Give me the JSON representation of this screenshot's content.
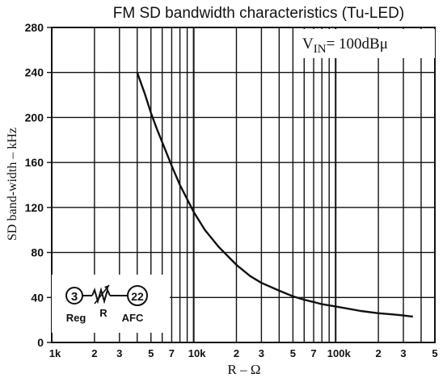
{
  "chart_data": {
    "type": "line",
    "title": "FM SD bandwidth characteristics (Tu-LED)",
    "xlabel": "R – Ω",
    "ylabel": "SD band-width – kHz",
    "annotation_main": "V",
    "annotation_sub": "IN",
    "annotation_rest": "= 100dBμ",
    "x_scale": "log",
    "xlim": [
      1000,
      500000
    ],
    "ylim": [
      0,
      280
    ],
    "grid": true,
    "x_ticks": [
      {
        "value": 1000,
        "label": "1k"
      },
      {
        "value": 2000,
        "label": "2"
      },
      {
        "value": 3000,
        "label": "3"
      },
      {
        "value": 5000,
        "label": "5"
      },
      {
        "value": 7000,
        "label": "7"
      },
      {
        "value": 10000,
        "label": "10k"
      },
      {
        "value": 20000,
        "label": "2"
      },
      {
        "value": 30000,
        "label": "3"
      },
      {
        "value": 50000,
        "label": "5"
      },
      {
        "value": 70000,
        "label": "7"
      },
      {
        "value": 100000,
        "label": "100k"
      },
      {
        "value": 200000,
        "label": "2"
      },
      {
        "value": 300000,
        "label": "3"
      },
      {
        "value": 500000,
        "label": "5"
      }
    ],
    "x_gridlines": [
      2000,
      3000,
      4000,
      5000,
      6000,
      7000,
      8000,
      9000,
      10000,
      20000,
      30000,
      40000,
      50000,
      60000,
      70000,
      80000,
      90000,
      100000,
      200000,
      300000,
      400000
    ],
    "y_ticks": [
      0,
      40,
      80,
      120,
      160,
      200,
      240,
      280
    ],
    "series": [
      {
        "x": [
          4000,
          4500,
          5000,
          5500,
          6000,
          7000,
          8000,
          10000,
          12000,
          15000,
          20000,
          25000,
          30000,
          40000,
          50000,
          60000,
          70000,
          80000,
          100000,
          150000,
          200000,
          250000,
          300000,
          350000
        ],
        "y": [
          240,
          222,
          204,
          190,
          178,
          157,
          140,
          116,
          100,
          85,
          69,
          59,
          53,
          46,
          41,
          38,
          36,
          34,
          32,
          28,
          26,
          25,
          24,
          23
        ]
      }
    ],
    "inset": {
      "node_left": "3",
      "node_right": "22",
      "label_left": "Reg",
      "label_mid": "R",
      "label_right": "AFC"
    }
  }
}
